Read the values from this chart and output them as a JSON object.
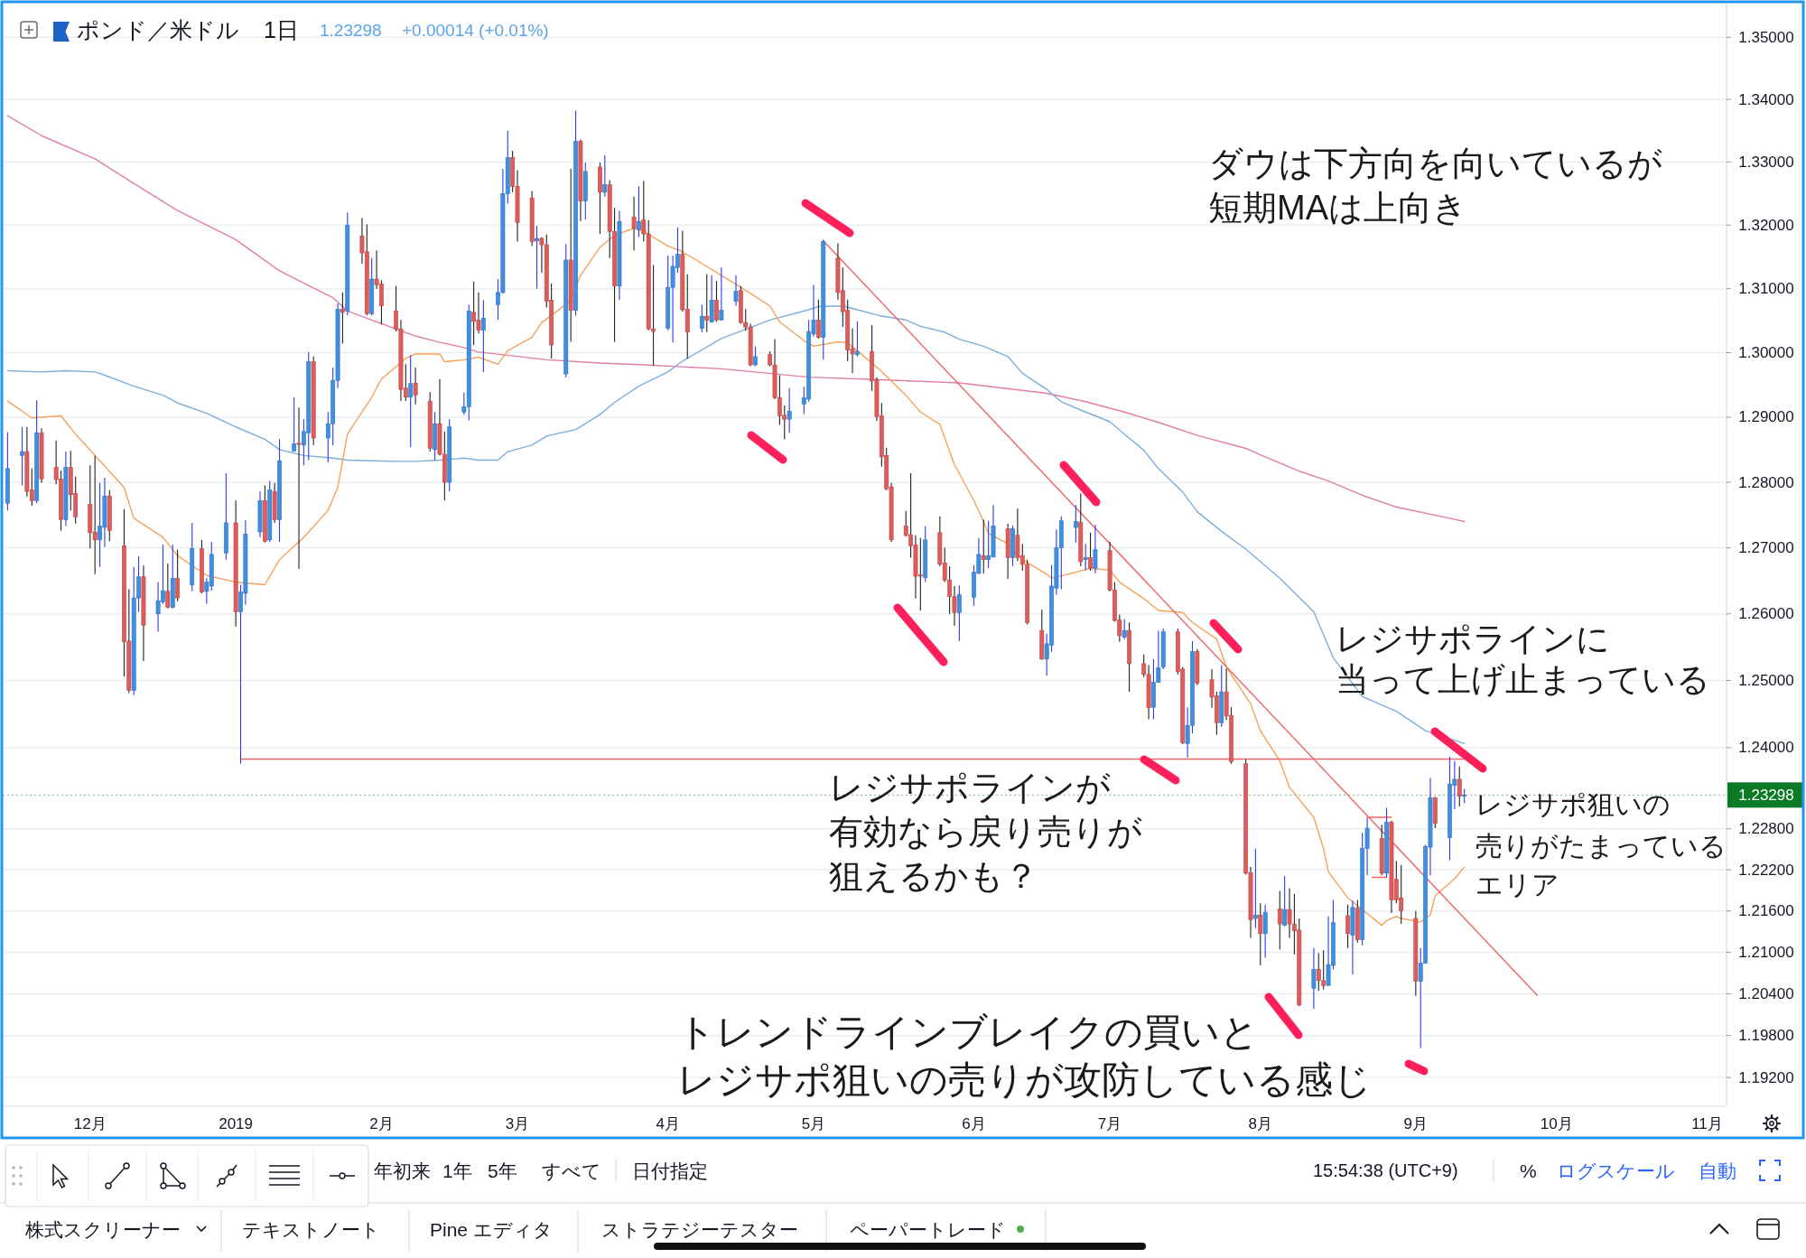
{
  "chart_data": {
    "type": "candlestick",
    "title": "ポンド／米ドル",
    "subtitle": "1日",
    "annotations": [
      "1.23298",
      "+0.00014 (+0.01%)",
      "ダウは下方向を向いているが",
      "短期MAは上向き",
      "レジサポラインに",
      "当って上げ止まっている",
      "レジサポラインが",
      "有効なら戻り売りが",
      "狙えるかも？",
      "レジサポ狙いの",
      "売りがたまっている",
      "エリア",
      "トレンドラインブレイクの買いと",
      "レジサポ狙いの売りが攻防している感じ",
      "年初来",
      "1年",
      "5年",
      "すべて",
      "日付指定",
      "15:54:38 (UTC+9)",
      "%",
      "ログスケール",
      "自動",
      "株式スクリーナー",
      "テキストノート",
      "Pine エディタ",
      "ストラテジーテスター",
      "ペーパートレード"
    ],
    "x": [
      "2018-11-16",
      "2018-11-19",
      "2018-11-20",
      "2018-11-21",
      "2018-11-22",
      "2018-11-23",
      "2018-11-26",
      "2018-11-27",
      "2018-11-28",
      "2018-11-29",
      "2018-11-30",
      "2018-12-03",
      "2018-12-04",
      "2018-12-05",
      "2018-12-06",
      "2018-12-07",
      "2018-12-10",
      "2018-12-11",
      "2018-12-12",
      "2018-12-13",
      "2018-12-14",
      "2018-12-17",
      "2018-12-18",
      "2018-12-19",
      "2018-12-20",
      "2018-12-21",
      "2018-12-24",
      "2018-12-26",
      "2018-12-27",
      "2018-12-28",
      "2018-12-31",
      "2019-01-02",
      "2019-01-03",
      "2019-01-04",
      "2019-01-07",
      "2019-01-08",
      "2019-01-09",
      "2019-01-10",
      "2019-01-11",
      "2019-01-14",
      "2019-01-15",
      "2019-01-16",
      "2019-01-17",
      "2019-01-18",
      "2019-01-21",
      "2019-01-22",
      "2019-01-23",
      "2019-01-24",
      "2019-01-25",
      "2019-01-28",
      "2019-01-29",
      "2019-01-30",
      "2019-01-31",
      "2019-02-01",
      "2019-02-04",
      "2019-02-05",
      "2019-02-06",
      "2019-02-07",
      "2019-02-08",
      "2019-02-11",
      "2019-02-12",
      "2019-02-13",
      "2019-02-14",
      "2019-02-15",
      "2019-02-18",
      "2019-02-19",
      "2019-02-20",
      "2019-02-21",
      "2019-02-22",
      "2019-02-25",
      "2019-02-26",
      "2019-02-27",
      "2019-02-28",
      "2019-03-01",
      "2019-03-04",
      "2019-03-05",
      "2019-03-06",
      "2019-03-07",
      "2019-03-08",
      "2019-03-11",
      "2019-03-12",
      "2019-03-13",
      "2019-03-14",
      "2019-03-15",
      "2019-03-18",
      "2019-03-19",
      "2019-03-20",
      "2019-03-21",
      "2019-03-22",
      "2019-03-25",
      "2019-03-26",
      "2019-03-27",
      "2019-03-28",
      "2019-03-29",
      "2019-04-01",
      "2019-04-02",
      "2019-04-03",
      "2019-04-04",
      "2019-04-05",
      "2019-04-08",
      "2019-04-09",
      "2019-04-10",
      "2019-04-11",
      "2019-04-12",
      "2019-04-15",
      "2019-04-16",
      "2019-04-17",
      "2019-04-18",
      "2019-04-19",
      "2019-04-22",
      "2019-04-23",
      "2019-04-24",
      "2019-04-25",
      "2019-04-26",
      "2019-04-29",
      "2019-04-30",
      "2019-05-01",
      "2019-05-02",
      "2019-05-03",
      "2019-05-06",
      "2019-05-07",
      "2019-05-08",
      "2019-05-09",
      "2019-05-10",
      "2019-05-13",
      "2019-05-14",
      "2019-05-15",
      "2019-05-16",
      "2019-05-17",
      "2019-05-20",
      "2019-05-21",
      "2019-05-22",
      "2019-05-23",
      "2019-05-24",
      "2019-05-27",
      "2019-05-28",
      "2019-05-29",
      "2019-05-30",
      "2019-05-31",
      "2019-06-03",
      "2019-06-04",
      "2019-06-05",
      "2019-06-06",
      "2019-06-07",
      "2019-06-10",
      "2019-06-11",
      "2019-06-12",
      "2019-06-13",
      "2019-06-14",
      "2019-06-17",
      "2019-06-18",
      "2019-06-19",
      "2019-06-20",
      "2019-06-21",
      "2019-06-24",
      "2019-06-25",
      "2019-06-26",
      "2019-06-27",
      "2019-06-28",
      "2019-07-01",
      "2019-07-02",
      "2019-07-03",
      "2019-07-04",
      "2019-07-05",
      "2019-07-08",
      "2019-07-09",
      "2019-07-10",
      "2019-07-11",
      "2019-07-12",
      "2019-07-15",
      "2019-07-16",
      "2019-07-17",
      "2019-07-18",
      "2019-07-19",
      "2019-07-22",
      "2019-07-23",
      "2019-07-24",
      "2019-07-25",
      "2019-07-26",
      "2019-07-29",
      "2019-07-30",
      "2019-07-31",
      "2019-08-01",
      "2019-08-02",
      "2019-08-05",
      "2019-08-06",
      "2019-08-07",
      "2019-08-08",
      "2019-08-09",
      "2019-08-12",
      "2019-08-13",
      "2019-08-14",
      "2019-08-15",
      "2019-08-16",
      "2019-08-19",
      "2019-08-20",
      "2019-08-21",
      "2019-08-22",
      "2019-08-23",
      "2019-08-26",
      "2019-08-27",
      "2019-08-28",
      "2019-08-29",
      "2019-08-30",
      "2019-09-02",
      "2019-09-03",
      "2019-09-04",
      "2019-09-05",
      "2019-09-06",
      "2019-09-09",
      "2019-09-10",
      "2019-09-11",
      "2019-09-12"
    ],
    "ohlc": [
      [
        1.2768,
        1.2877,
        1.2757,
        1.2821
      ],
      [
        1.2841,
        1.2885,
        1.2795,
        1.2847
      ],
      [
        1.2847,
        1.2885,
        1.2778,
        1.2786
      ],
      [
        1.2788,
        1.2821,
        1.2764,
        1.2772
      ],
      [
        1.2772,
        1.2926,
        1.2768,
        1.2876
      ],
      [
        1.2876,
        1.2883,
        1.2799,
        1.2805
      ],
      [
        1.2823,
        1.2864,
        1.2797,
        1.2804
      ],
      [
        1.2805,
        1.2818,
        1.2726,
        1.2743
      ],
      [
        1.2743,
        1.2847,
        1.2733,
        1.2823
      ],
      [
        1.2823,
        1.2848,
        1.2757,
        1.2781
      ],
      [
        1.2783,
        1.2809,
        1.2737,
        1.2747
      ],
      [
        1.2766,
        1.2826,
        1.2699,
        1.2723
      ],
      [
        1.2724,
        1.2841,
        1.266,
        1.2712
      ],
      [
        1.2712,
        1.2799,
        1.2671,
        1.2733
      ],
      [
        1.2731,
        1.2807,
        1.2701,
        1.2779
      ],
      [
        1.2779,
        1.2788,
        1.271,
        1.2726
      ],
      [
        1.2703,
        1.2759,
        1.2506,
        1.2558
      ],
      [
        1.2559,
        1.2637,
        1.2481,
        1.2485
      ],
      [
        1.2485,
        1.2671,
        1.2478,
        1.2624
      ],
      [
        1.2624,
        1.2687,
        1.2603,
        1.2656
      ],
      [
        1.2656,
        1.2673,
        1.2529,
        1.2583
      ],
      [
        1.26,
        1.2648,
        1.2573,
        1.262
      ],
      [
        1.2618,
        1.2705,
        1.2615,
        1.2635
      ],
      [
        1.2634,
        1.2676,
        1.2608,
        1.261
      ],
      [
        1.261,
        1.2705,
        1.2608,
        1.2654
      ],
      [
        1.2654,
        1.2697,
        1.2619,
        1.2624
      ],
      [
        1.2644,
        1.2738,
        1.2634,
        1.2699
      ],
      [
        1.2699,
        1.2712,
        1.2631,
        1.2633
      ],
      [
        1.2634,
        1.2654,
        1.2615,
        1.2648
      ],
      [
        1.2642,
        1.2709,
        1.2635,
        1.269
      ],
      [
        1.2692,
        1.2814,
        1.2682,
        1.2738
      ],
      [
        1.2738,
        1.2772,
        1.2581,
        1.2603
      ],
      [
        1.2603,
        1.2644,
        1.2376,
        1.2633
      ],
      [
        1.2631,
        1.2742,
        1.2614,
        1.2721
      ],
      [
        1.2724,
        1.2786,
        1.2716,
        1.2772
      ],
      [
        1.2772,
        1.2795,
        1.2708,
        1.271
      ],
      [
        1.2712,
        1.2802,
        1.2709,
        1.2788
      ],
      [
        1.2786,
        1.2799,
        1.2738,
        1.2743
      ],
      [
        1.2743,
        1.2866,
        1.2709,
        1.2833
      ],
      [
        1.2848,
        1.2931,
        1.2847,
        1.2859
      ],
      [
        1.286,
        1.2915,
        1.2668,
        1.2858
      ],
      [
        1.2857,
        1.2897,
        1.2826,
        1.2878
      ],
      [
        1.2876,
        1.3001,
        1.2834,
        1.2986
      ],
      [
        1.2986,
        1.2994,
        1.2857,
        1.2868
      ],
      [
        1.2868,
        1.2908,
        1.283,
        1.289
      ],
      [
        1.289,
        1.2977,
        1.2857,
        1.2957
      ],
      [
        1.2957,
        1.3077,
        1.2945,
        1.3068
      ],
      [
        1.3068,
        1.3094,
        1.3014,
        1.3063
      ],
      [
        1.3065,
        1.322,
        1.3058,
        1.32
      ],
      [
        1.3183,
        1.3211,
        1.3139,
        1.3156
      ],
      [
        1.3158,
        1.3201,
        1.3058,
        1.3061
      ],
      [
        1.3061,
        1.3148,
        1.3058,
        1.3115
      ],
      [
        1.3115,
        1.316,
        1.31,
        1.3106
      ],
      [
        1.3107,
        1.3113,
        1.3044,
        1.3073
      ],
      [
        1.3065,
        1.3104,
        1.3033,
        1.3037
      ],
      [
        1.3037,
        1.3051,
        1.2925,
        1.2943
      ],
      [
        1.2945,
        1.2982,
        1.2925,
        1.2931
      ],
      [
        1.2931,
        1.2996,
        1.2854,
        1.2952
      ],
      [
        1.2953,
        1.2977,
        1.292,
        1.2934
      ],
      [
        1.2925,
        1.2939,
        1.2847,
        1.2852
      ],
      [
        1.285,
        1.2908,
        1.2834,
        1.289
      ],
      [
        1.289,
        1.2959,
        1.2841,
        1.2843
      ],
      [
        1.2843,
        1.2878,
        1.2772,
        1.28
      ],
      [
        1.28,
        1.2897,
        1.2786,
        1.2885
      ],
      [
        1.2908,
        1.2938,
        1.2904,
        1.2916
      ],
      [
        1.2916,
        1.3075,
        1.2895,
        1.3065
      ],
      [
        1.3063,
        1.3111,
        1.3012,
        1.3049
      ],
      [
        1.3051,
        1.3094,
        1.303,
        1.3035
      ],
      [
        1.3035,
        1.3082,
        1.297,
        1.3054
      ],
      [
        1.3075,
        1.3115,
        1.3051,
        1.3094
      ],
      [
        1.3094,
        1.3289,
        1.3092,
        1.325
      ],
      [
        1.325,
        1.335,
        1.3234,
        1.3307
      ],
      [
        1.3307,
        1.3318,
        1.3252,
        1.3261
      ],
      [
        1.3261,
        1.3287,
        1.3174,
        1.3204
      ],
      [
        1.3243,
        1.3254,
        1.3167,
        1.3174
      ],
      [
        1.3175,
        1.3199,
        1.31,
        1.3179
      ],
      [
        1.3179,
        1.3181,
        1.3125,
        1.3169
      ],
      [
        1.3169,
        1.3185,
        1.307,
        1.308
      ],
      [
        1.3082,
        1.3108,
        1.2991,
        1.3012
      ],
      [
        1.2967,
        1.317,
        1.2962,
        1.3145
      ],
      [
        1.3145,
        1.3289,
        1.3017,
        1.3066
      ],
      [
        1.3066,
        1.3382,
        1.3058,
        1.3333
      ],
      [
        1.3333,
        1.3336,
        1.3206,
        1.3238
      ],
      [
        1.3238,
        1.3299,
        1.3209,
        1.3285
      ],
      [
        1.3292,
        1.3299,
        1.3186,
        1.3252
      ],
      [
        1.3252,
        1.3311,
        1.3245,
        1.3264
      ],
      [
        1.3264,
        1.3271,
        1.3148,
        1.319
      ],
      [
        1.319,
        1.3227,
        1.3017,
        1.3104
      ],
      [
        1.3104,
        1.3223,
        1.3082,
        1.3206
      ],
      [
        1.3213,
        1.3245,
        1.316,
        1.3195
      ],
      [
        1.3193,
        1.3261,
        1.3181,
        1.3206
      ],
      [
        1.3208,
        1.327,
        1.3174,
        1.3186
      ],
      [
        1.3186,
        1.3208,
        1.3035,
        1.3037
      ],
      [
        1.3037,
        1.3137,
        1.298,
        1.3033
      ],
      [
        1.3038,
        1.3152,
        1.3035,
        1.3102
      ],
      [
        1.3102,
        1.3152,
        1.3016,
        1.3135
      ],
      [
        1.3133,
        1.3196,
        1.3125,
        1.3154
      ],
      [
        1.3154,
        1.3191,
        1.3064,
        1.3067
      ],
      [
        1.3068,
        1.3123,
        1.2991,
        1.3032
      ],
      [
        1.3038,
        1.3075,
        1.3032,
        1.3057
      ],
      [
        1.3057,
        1.3123,
        1.3032,
        1.3051
      ],
      [
        1.3048,
        1.3121,
        1.3047,
        1.3082
      ],
      [
        1.3082,
        1.3112,
        1.3048,
        1.3051
      ],
      [
        1.3051,
        1.3133,
        1.3051,
        1.3066
      ],
      [
        1.308,
        1.3121,
        1.3073,
        1.3096
      ],
      [
        1.3097,
        1.3104,
        1.3045,
        1.3047
      ],
      [
        1.3047,
        1.3068,
        1.3034,
        1.304
      ],
      [
        1.304,
        1.3045,
        1.2979,
        1.2981
      ],
      [
        1.2981,
        1.301,
        1.2979,
        1.2994
      ],
      [
        1.2997,
        1.3002,
        1.2979,
        1.2981
      ],
      [
        1.2981,
        1.3021,
        1.2928,
        1.293
      ],
      [
        1.293,
        1.2965,
        1.2888,
        1.2902
      ],
      [
        1.2903,
        1.2918,
        1.2866,
        1.2897
      ],
      [
        1.2897,
        1.2945,
        1.2876,
        1.2909
      ],
      [
        1.292,
        1.2947,
        1.2905,
        1.293
      ],
      [
        1.2928,
        1.3051,
        1.2924,
        1.3033
      ],
      [
        1.3029,
        1.3106,
        1.3025,
        1.3051
      ],
      [
        1.3051,
        1.3083,
        1.3022,
        1.3024
      ],
      [
        1.3024,
        1.3177,
        1.2989,
        1.3174
      ],
      [
        1.3148,
        1.3171,
        1.3083,
        1.3094
      ],
      [
        1.3097,
        1.3133,
        1.304,
        1.3064
      ],
      [
        1.3066,
        1.3083,
        1.2987,
        1.3004
      ],
      [
        1.3006,
        1.3038,
        1.2968,
        1.2998
      ],
      [
        1.2997,
        1.3049,
        1.2994,
        1.3002
      ],
      [
        1.3002,
        1.3043,
        1.2941,
        1.2956
      ],
      [
        1.2958,
        1.2962,
        1.2894,
        1.2901
      ],
      [
        1.2902,
        1.2922,
        1.2824,
        1.2839
      ],
      [
        1.2841,
        1.2853,
        1.2788,
        1.279
      ],
      [
        1.2793,
        1.2799,
        1.2709,
        1.2712
      ],
      [
        1.2733,
        1.2756,
        1.2717,
        1.2719
      ],
      [
        1.272,
        1.2814,
        1.2685,
        1.2703
      ],
      [
        1.2704,
        1.2719,
        1.2623,
        1.2657
      ],
      [
        1.2659,
        1.2715,
        1.2605,
        1.2657
      ],
      [
        1.2655,
        1.2733,
        1.2648,
        1.2712
      ],
      [
        1.2723,
        1.2748,
        1.2672,
        1.2675
      ],
      [
        1.2677,
        1.27,
        1.2648,
        1.2651
      ],
      [
        1.2651,
        1.2672,
        1.26,
        1.2626
      ],
      [
        1.2626,
        1.2642,
        1.2582,
        1.2602
      ],
      [
        1.2602,
        1.2643,
        1.2559,
        1.2629
      ],
      [
        1.2625,
        1.2674,
        1.2612,
        1.2663
      ],
      [
        1.2661,
        1.2715,
        1.2661,
        1.269
      ],
      [
        1.2688,
        1.2743,
        1.2661,
        1.2682
      ],
      [
        1.2682,
        1.2741,
        1.2669,
        1.2688
      ],
      [
        1.2686,
        1.2765,
        1.2685,
        1.2733
      ],
      [
        1.2729,
        1.2737,
        1.2653,
        1.2685
      ],
      [
        1.2685,
        1.2734,
        1.2672,
        1.2729
      ],
      [
        1.2719,
        1.276,
        1.268,
        1.2685
      ],
      [
        1.2688,
        1.2706,
        1.2665,
        1.2675
      ],
      [
        1.2675,
        1.2682,
        1.2584,
        1.2587
      ],
      [
        1.2575,
        1.2606,
        1.2531,
        1.2532
      ],
      [
        1.2532,
        1.257,
        1.2507,
        1.2555
      ],
      [
        1.2553,
        1.2674,
        1.2543,
        1.2642
      ],
      [
        1.2639,
        1.2728,
        1.2629,
        1.27
      ],
      [
        1.27,
        1.2748,
        1.2637,
        1.2741
      ],
      [
        1.2731,
        1.2765,
        1.2708,
        1.274
      ],
      [
        1.2739,
        1.2783,
        1.2672,
        1.2679
      ],
      [
        1.2682,
        1.2706,
        1.2666,
        1.2685
      ],
      [
        1.2685,
        1.2723,
        1.2665,
        1.2669
      ],
      [
        1.2669,
        1.2735,
        1.2661,
        1.2697
      ],
      [
        1.2696,
        1.2709,
        1.2634,
        1.2636
      ],
      [
        1.2636,
        1.2648,
        1.2588,
        1.259
      ],
      [
        1.2591,
        1.2599,
        1.2558,
        1.2567
      ],
      [
        1.2565,
        1.2592,
        1.2562,
        1.2575
      ],
      [
        1.2575,
        1.2587,
        1.2483,
        1.2525
      ],
      [
        1.2525,
        1.2539,
        1.2505,
        1.2509
      ],
      [
        1.2509,
        1.2523,
        1.2442,
        1.2459
      ],
      [
        1.246,
        1.2532,
        1.2442,
        1.2497
      ],
      [
        1.2497,
        1.2574,
        1.2497,
        1.2519
      ],
      [
        1.252,
        1.2578,
        1.2517,
        1.2573
      ],
      [
        1.2573,
        1.2578,
        1.2509,
        1.2513
      ],
      [
        1.2517,
        1.252,
        1.2405,
        1.2407
      ],
      [
        1.2406,
        1.246,
        1.2385,
        1.2433
      ],
      [
        1.2433,
        1.2559,
        1.2421,
        1.2543
      ],
      [
        1.2543,
        1.2547,
        1.2493,
        1.2496
      ],
      [
        1.2501,
        1.2517,
        1.2459,
        1.2475
      ],
      [
        1.2477,
        1.2483,
        1.2419,
        1.2437
      ],
      [
        1.2437,
        1.2523,
        1.2431,
        1.2483
      ],
      [
        1.2483,
        1.2518,
        1.2441,
        1.2447
      ],
      [
        1.2448,
        1.246,
        1.2376,
        1.2379
      ],
      [
        1.2376,
        1.2383,
        1.2213,
        1.2215
      ],
      [
        1.2216,
        1.2224,
        1.2121,
        1.2147
      ],
      [
        1.2149,
        1.2251,
        1.2135,
        1.2154
      ],
      [
        1.2154,
        1.2171,
        1.2081,
        1.2127
      ],
      [
        1.2127,
        1.2169,
        1.2092,
        1.2158
      ],
      [
        1.2163,
        1.2189,
        1.2104,
        1.2141
      ],
      [
        1.2139,
        1.2211,
        1.2138,
        1.2162
      ],
      [
        1.2162,
        1.2193,
        1.2121,
        1.2141
      ],
      [
        1.2141,
        1.2185,
        1.2097,
        1.2131
      ],
      [
        1.2132,
        1.2149,
        1.2022,
        1.2024
      ],
      [
        1.2048,
        1.2106,
        1.2018,
        1.2075
      ],
      [
        1.2075,
        1.2099,
        1.2044,
        1.2059
      ],
      [
        1.2059,
        1.2103,
        1.2046,
        1.2052
      ],
      [
        1.2052,
        1.2152,
        1.2052,
        1.2082
      ],
      [
        1.2081,
        1.2176,
        1.2075,
        1.2143
      ],
      [
        1.2153,
        1.2169,
        1.2106,
        1.2127
      ],
      [
        1.2125,
        1.2175,
        1.2068,
        1.2165
      ],
      [
        1.2164,
        1.2176,
        1.2114,
        1.2118
      ],
      [
        1.2118,
        1.2274,
        1.211,
        1.2251
      ],
      [
        1.2251,
        1.2296,
        1.2212,
        1.2281
      ],
      [
        1.2266,
        1.2286,
        1.2212,
        1.2215
      ],
      [
        1.2215,
        1.2311,
        1.2209,
        1.229
      ],
      [
        1.229,
        1.2292,
        1.2157,
        1.2176
      ],
      [
        1.2206,
        1.2233,
        1.2171,
        1.2176
      ],
      [
        1.2179,
        1.2227,
        1.2141,
        1.216
      ],
      [
        1.2149,
        1.216,
        1.2037,
        1.2058
      ],
      [
        1.2058,
        1.2106,
        1.1962,
        1.2084
      ],
      [
        1.2084,
        1.2257,
        1.2084,
        1.2254
      ],
      [
        1.2253,
        1.2355,
        1.2212,
        1.2326
      ],
      [
        1.2326,
        1.2327,
        1.2281,
        1.2288
      ],
      [
        1.2267,
        1.2386,
        1.2234,
        1.2346
      ],
      [
        1.2344,
        1.238,
        1.2309,
        1.2353
      ],
      [
        1.2353,
        1.2372,
        1.2313,
        1.2328
      ],
      [
        1.2328,
        1.2339,
        1.2318,
        1.23298
      ]
    ],
    "colors": [
      "#3f8fe3",
      "#3f8fe3",
      "#e25b5b",
      "#e25b5b",
      "#3f8fe3",
      "#e25b5b",
      "#e25b5b",
      "#e25b5b",
      "#3f8fe3",
      "#e25b5b",
      "#e25b5b",
      "#e25b5b",
      "#e25b5b",
      "#3f8fe3",
      "#3f8fe3",
      "#e25b5b",
      "#e25b5b",
      "#e25b5b",
      "#3f8fe3",
      "#3f8fe3",
      "#e25b5b",
      "#3f8fe3",
      "#3f8fe3",
      "#e25b5b",
      "#3f8fe3",
      "#e25b5b",
      "#3f8fe3",
      "#e25b5b",
      "#3f8fe3",
      "#3f8fe3",
      "#3f8fe3",
      "#e25b5b",
      "#3f8fe3",
      "#3f8fe3",
      "#3f8fe3",
      "#e25b5b",
      "#3f8fe3",
      "#e25b5b",
      "#3f8fe3",
      "#3f8fe3",
      "#e25b5b",
      "#3f8fe3",
      "#3f8fe3",
      "#e25b5b",
      "#3f8fe3",
      "#3f8fe3",
      "#3f8fe3",
      "#e25b5b",
      "#3f8fe3",
      "#e25b5b",
      "#e25b5b",
      "#3f8fe3",
      "#e25b5b",
      "#e25b5b",
      "#e25b5b",
      "#e25b5b",
      "#e25b5b",
      "#3f8fe3",
      "#e25b5b",
      "#e25b5b",
      "#3f8fe3",
      "#e25b5b",
      "#e25b5b",
      "#3f8fe3",
      "#3f8fe3",
      "#3f8fe3",
      "#e25b5b",
      "#e25b5b",
      "#3f8fe3",
      "#3f8fe3",
      "#3f8fe3",
      "#3f8fe3",
      "#e25b5b",
      "#e25b5b",
      "#e25b5b",
      "#3f8fe3",
      "#e25b5b",
      "#e25b5b",
      "#e25b5b",
      "#3f8fe3",
      "#e25b5b",
      "#3f8fe3",
      "#e25b5b",
      "#3f8fe3",
      "#e25b5b",
      "#3f8fe3",
      "#e25b5b",
      "#e25b5b",
      "#3f8fe3",
      "#e25b5b",
      "#3f8fe3",
      "#e25b5b",
      "#e25b5b",
      "#e25b5b",
      "#3f8fe3",
      "#3f8fe3",
      "#3f8fe3",
      "#e25b5b",
      "#e25b5b",
      "#3f8fe3",
      "#e25b5b",
      "#3f8fe3",
      "#e25b5b",
      "#3f8fe3",
      "#3f8fe3",
      "#e25b5b",
      "#e25b5b",
      "#e25b5b",
      "#3f8fe3",
      "#e25b5b",
      "#e25b5b",
      "#e25b5b",
      "#e25b5b",
      "#3f8fe3",
      "#3f8fe3",
      "#3f8fe3",
      "#3f8fe3",
      "#e25b5b",
      "#3f8fe3",
      "#e25b5b",
      "#e25b5b",
      "#e25b5b",
      "#e25b5b",
      "#3f8fe3",
      "#e25b5b",
      "#e25b5b",
      "#e25b5b",
      "#e25b5b",
      "#e25b5b",
      "#e25b5b",
      "#e25b5b",
      "#e25b5b",
      "#e25b5b",
      "#3f8fe3",
      "#e25b5b",
      "#e25b5b",
      "#e25b5b",
      "#e25b5b",
      "#3f8fe3",
      "#3f8fe3",
      "#3f8fe3",
      "#e25b5b",
      "#3f8fe3",
      "#3f8fe3",
      "#e25b5b",
      "#3f8fe3",
      "#e25b5b",
      "#e25b5b",
      "#e25b5b",
      "#e25b5b",
      "#3f8fe3",
      "#3f8fe3",
      "#3f8fe3",
      "#3f8fe3",
      "#3f8fe3",
      "#e25b5b",
      "#3f8fe3",
      "#e25b5b",
      "#3f8fe3",
      "#e25b5b",
      "#e25b5b",
      "#e25b5b",
      "#3f8fe3",
      "#e25b5b",
      "#e25b5b",
      "#e25b5b",
      "#3f8fe3",
      "#3f8fe3",
      "#3f8fe3",
      "#e25b5b",
      "#e25b5b",
      "#3f8fe3",
      "#3f8fe3",
      "#e25b5b",
      "#e25b5b",
      "#e25b5b",
      "#3f8fe3",
      "#e25b5b",
      "#e25b5b",
      "#e25b5b",
      "#e25b5b",
      "#3f8fe3",
      "#e25b5b",
      "#3f8fe3",
      "#e25b5b",
      "#3f8fe3",
      "#e25b5b",
      "#e25b5b",
      "#e25b5b",
      "#3f8fe3",
      "#e25b5b",
      "#e25b5b",
      "#3f8fe3",
      "#3f8fe3",
      "#e25b5b",
      "#3f8fe3",
      "#e25b5b",
      "#3f8fe3",
      "#3f8fe3",
      "#e25b5b",
      "#3f8fe3",
      "#e25b5b",
      "#e25b5b",
      "#e25b5b",
      "#e25b5b",
      "#3f8fe3",
      "#3f8fe3",
      "#3f8fe3",
      "#e25b5b",
      "#3f8fe3",
      "#3f8fe3",
      "#e25b5b",
      "#3f8fe3"
    ],
    "series": [
      {
        "type": "line",
        "color": "#e27ea7",
        "x": [
          "2018-11-16",
          "2018-11-23",
          "2018-12-04",
          "2018-12-12",
          "2018-12-21",
          "2019-01-02",
          "2019-01-11",
          "2019-01-22",
          "2019-01-25",
          "2019-01-30",
          "2019-02-04",
          "2019-02-08",
          "2019-02-13",
          "2019-02-18",
          "2019-02-21",
          "2019-02-27",
          "2019-03-07",
          "2019-03-18",
          "2019-03-27",
          "2019-04-12",
          "2019-04-30",
          "2019-05-15",
          "2019-05-31",
          "2019-06-18",
          "2019-06-26",
          "2019-07-04",
          "2019-07-11",
          "2019-07-19",
          "2019-07-29",
          "2019-08-01",
          "2019-08-09",
          "2019-08-15",
          "2019-08-22",
          "2019-08-29",
          "2019-09-09",
          "2019-09-12"
        ],
        "values": [
          1.3374,
          1.3342,
          1.3305,
          1.3266,
          1.3223,
          1.3177,
          1.3128,
          1.3086,
          1.3065,
          1.3051,
          1.3037,
          1.3026,
          1.3016,
          1.3008,
          1.3001,
          1.2996,
          1.2989,
          1.2984,
          1.2981,
          1.2975,
          1.2962,
          1.2958,
          1.2953,
          1.2937,
          1.2924,
          1.2908,
          1.2892,
          1.2872,
          1.2852,
          1.2842,
          1.2817,
          1.2802,
          1.278,
          1.2762,
          1.2745,
          1.274
        ]
      },
      {
        "type": "line",
        "color": "#7eaedc",
        "x": [
          "2018-11-16",
          "2018-11-23",
          "2018-11-28",
          "2018-12-04",
          "2018-12-06",
          "2018-12-12",
          "2018-12-18",
          "2018-12-21",
          "2018-12-27",
          "2019-01-02",
          "2019-01-08",
          "2019-01-11",
          "2019-01-16",
          "2019-01-22",
          "2019-01-25",
          "2019-01-30",
          "2019-02-04",
          "2019-02-08",
          "2019-02-13",
          "2019-02-18",
          "2019-02-21",
          "2019-02-25",
          "2019-02-27",
          "2019-03-04",
          "2019-03-07",
          "2019-03-13",
          "2019-03-18",
          "2019-03-21",
          "2019-03-26",
          "2019-04-01",
          "2019-04-04",
          "2019-04-12",
          "2019-04-22",
          "2019-04-30",
          "2019-05-02",
          "2019-05-07",
          "2019-05-10",
          "2019-05-15",
          "2019-05-20",
          "2019-05-23",
          "2019-05-28",
          "2019-05-31",
          "2019-06-05",
          "2019-06-10",
          "2019-06-13",
          "2019-06-18",
          "2019-06-21",
          "2019-06-26",
          "2019-07-01",
          "2019-07-04",
          "2019-07-08",
          "2019-07-11",
          "2019-07-16",
          "2019-07-19",
          "2019-07-24",
          "2019-07-29",
          "2019-08-05",
          "2019-08-12",
          "2019-08-16",
          "2019-08-22",
          "2019-08-29",
          "2019-09-04",
          "2019-09-12"
        ],
        "values": [
          1.2972,
          1.297,
          1.2972,
          1.297,
          1.2965,
          1.2948,
          1.2934,
          1.2922,
          1.2906,
          1.2885,
          1.2866,
          1.285,
          1.2841,
          1.2837,
          1.2834,
          1.2833,
          1.2832,
          1.2832,
          1.2834,
          1.2837,
          1.2834,
          1.2834,
          1.2847,
          1.2857,
          1.2871,
          1.2881,
          1.2904,
          1.2923,
          1.2948,
          1.297,
          1.2987,
          1.3022,
          1.3051,
          1.3067,
          1.3072,
          1.3073,
          1.3067,
          1.3057,
          1.3051,
          1.3041,
          1.3032,
          1.3021,
          1.301,
          1.2994,
          1.2968,
          1.2943,
          1.2924,
          1.2908,
          1.2893,
          1.2874,
          1.2849,
          1.2821,
          1.2785,
          1.2755,
          1.2725,
          1.2698,
          1.2654,
          1.2603,
          1.2534,
          1.2476,
          1.2454,
          1.2425,
          1.2406
        ]
      },
      {
        "type": "line",
        "color": "#f5a25d",
        "x": [
          "2018-11-16",
          "2018-11-21",
          "2018-11-27",
          "2018-11-30",
          "2018-12-10",
          "2018-12-12",
          "2018-12-18",
          "2018-12-21",
          "2018-12-27",
          "2019-01-02",
          "2019-01-08",
          "2019-01-11",
          "2019-01-16",
          "2019-01-21",
          "2019-01-23",
          "2019-01-25",
          "2019-01-30",
          "2019-02-01",
          "2019-02-06",
          "2019-02-08",
          "2019-02-13",
          "2019-02-14",
          "2019-02-18",
          "2019-02-21",
          "2019-02-25",
          "2019-02-27",
          "2019-03-04",
          "2019-03-06",
          "2019-03-08",
          "2019-03-12",
          "2019-03-14",
          "2019-03-18",
          "2019-03-21",
          "2019-03-25",
          "2019-03-27",
          "2019-04-01",
          "2019-04-04",
          "2019-04-16",
          "2019-04-22",
          "2019-04-24",
          "2019-04-29",
          "2019-05-01",
          "2019-05-06",
          "2019-05-08",
          "2019-05-10",
          "2019-05-15",
          "2019-05-20",
          "2019-05-23",
          "2019-05-27",
          "2019-05-30",
          "2019-06-03",
          "2019-06-05",
          "2019-06-06",
          "2019-06-10",
          "2019-06-13",
          "2019-06-18",
          "2019-06-19",
          "2019-06-24",
          "2019-06-27",
          "2019-07-01",
          "2019-07-03",
          "2019-07-08",
          "2019-07-11",
          "2019-07-16",
          "2019-07-18",
          "2019-07-23",
          "2019-07-25",
          "2019-07-30",
          "2019-08-01",
          "2019-08-05",
          "2019-08-07",
          "2019-08-12",
          "2019-08-14",
          "2019-08-15",
          "2019-08-19",
          "2019-08-26",
          "2019-08-27",
          "2019-08-29",
          "2019-08-30",
          "2019-09-03",
          "2019-09-05",
          "2019-09-06",
          "2019-09-10",
          "2019-09-12"
        ],
        "values": [
          1.2925,
          1.2899,
          1.2902,
          1.2874,
          1.2792,
          1.2745,
          1.2716,
          1.2688,
          1.2658,
          1.2648,
          1.2644,
          1.2682,
          1.2716,
          1.2757,
          1.2792,
          1.2874,
          1.2931,
          1.2959,
          1.2991,
          1.2998,
          1.2998,
          1.2986,
          1.2989,
          1.2993,
          1.2982,
          1.3003,
          1.3024,
          1.3047,
          1.3058,
          1.3082,
          1.3121,
          1.3165,
          1.3184,
          1.3195,
          1.319,
          1.3167,
          1.3158,
          1.3102,
          1.3073,
          1.3048,
          1.3019,
          1.301,
          1.3017,
          1.3015,
          1.3003,
          1.2971,
          1.2934,
          1.2908,
          1.2889,
          1.2827,
          1.2772,
          1.274,
          1.2722,
          1.2706,
          1.2682,
          1.266,
          1.2654,
          1.2663,
          1.2669,
          1.2666,
          1.2648,
          1.2623,
          1.2605,
          1.2602,
          1.2587,
          1.2562,
          1.252,
          1.2465,
          1.2425,
          1.238,
          1.2341,
          1.2297,
          1.2251,
          1.2217,
          1.2179,
          1.2139,
          1.2146,
          1.2152,
          1.2149,
          1.2144,
          1.2154,
          1.2182,
          1.2207,
          1.2224
        ]
      },
      {
        "type": "line",
        "color": "#f06565",
        "x": [
          "2019-05-03",
          "2019-09-27"
        ],
        "values": [
          1.3175,
          1.2038
        ]
      },
      {
        "type": "line",
        "color": "#f06565",
        "x": [
          "2019-01-03",
          "2019-09-12"
        ],
        "values": [
          1.2383,
          1.2383
        ]
      },
      {
        "type": "line",
        "color": "#f06565",
        "x": [
          "2019-08-23",
          "2019-08-28"
        ],
        "values": [
          1.2297,
          1.2297
        ]
      },
      {
        "type": "line",
        "color": "#f06565",
        "x": [
          "2019-08-24",
          "2019-08-27"
        ],
        "values": [
          1.2209,
          1.2209
        ]
      }
    ],
    "ref_lines": [
      {
        "axis": "y",
        "value": 1.23298,
        "label": "1.23298",
        "color": "#0b7a25",
        "line_style": "dotted"
      }
    ],
    "xlim": [
      "2018-11-15",
      "2019-11-05"
    ],
    "xticks": [
      {
        "value": "2018-12-03",
        "label": "12月"
      },
      {
        "value": "2019-01-02",
        "label": "2019"
      },
      {
        "value": "2019-02-01",
        "label": "2月"
      },
      {
        "value": "2019-03-01",
        "label": "3月"
      },
      {
        "value": "2019-04-01",
        "label": "4月"
      },
      {
        "value": "2019-05-01",
        "label": "5月"
      },
      {
        "value": "2019-06-03",
        "label": "6月"
      },
      {
        "value": "2019-07-01",
        "label": "7月"
      },
      {
        "value": "2019-08-01",
        "label": "8月"
      },
      {
        "value": "2019-09-02",
        "label": "9月"
      },
      {
        "value": "2019-10-01",
        "label": "10月"
      },
      {
        "value": "2019-11-01",
        "label": "11月"
      }
    ],
    "ylim": [
      1.1879,
      1.3556
    ],
    "yticks": [
      {
        "value": 1.35,
        "label": "1.35000"
      },
      {
        "value": 1.34,
        "label": "1.34000"
      },
      {
        "value": 1.33,
        "label": "1.33000"
      },
      {
        "value": 1.32,
        "label": "1.32000"
      },
      {
        "value": 1.31,
        "label": "1.31000"
      },
      {
        "value": 1.3,
        "label": "1.30000"
      },
      {
        "value": 1.29,
        "label": "1.29000"
      },
      {
        "value": 1.28,
        "label": "1.28000"
      },
      {
        "value": 1.27,
        "label": "1.27000"
      },
      {
        "value": 1.26,
        "label": "1.26000"
      },
      {
        "value": 1.25,
        "label": "1.25000"
      },
      {
        "value": 1.24,
        "label": "1.24000"
      },
      {
        "value": 1.228,
        "label": "1.22800"
      },
      {
        "value": 1.222,
        "label": "1.22200"
      },
      {
        "value": 1.216,
        "label": "1.21600"
      },
      {
        "value": 1.21,
        "label": "1.21000"
      },
      {
        "value": 1.204,
        "label": "1.20400"
      },
      {
        "value": 1.198,
        "label": "1.19800"
      },
      {
        "value": 1.192,
        "label": "1.19200"
      }
    ],
    "log": true,
    "grid": "y"
  }
}
